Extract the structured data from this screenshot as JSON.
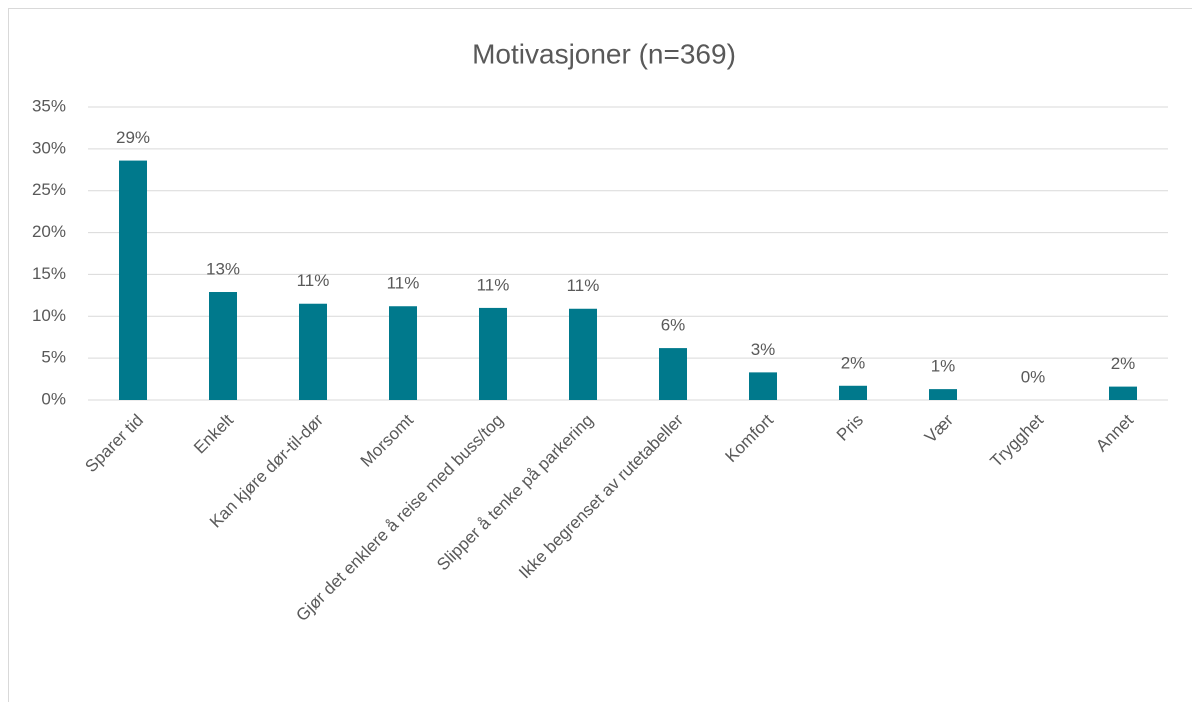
{
  "chart_data": {
    "type": "bar",
    "title": "Motivasjoner (n=369)",
    "categories": [
      "Sparer tid",
      "Enkelt",
      "Kan kjøre dør-til-dør",
      "Morsomt",
      "Gjør det enklere å reise med buss/tog",
      "Slipper å tenke på parkering",
      "Ikke begrenset av rutetabeller",
      "Komfort",
      "Pris",
      "Vær",
      "Trygghet",
      "Annet"
    ],
    "values": [
      28.6,
      12.9,
      11.5,
      11.2,
      11.0,
      10.9,
      6.2,
      3.3,
      1.7,
      1.3,
      0,
      1.6
    ],
    "value_labels": [
      "29%",
      "13%",
      "11%",
      "11%",
      "11%",
      "11%",
      "6%",
      "3%",
      "2%",
      "1%",
      "0%",
      "2%"
    ],
    "color": "#00798c",
    "ylim": [
      0,
      35
    ],
    "yticks": [
      {
        "value": 0,
        "label": "0%"
      },
      {
        "value": 5,
        "label": "5%"
      },
      {
        "value": 10,
        "label": "10%"
      },
      {
        "value": 15,
        "label": "15%"
      },
      {
        "value": 20,
        "label": "20%"
      },
      {
        "value": 25,
        "label": "25%"
      },
      {
        "value": 30,
        "label": "30%"
      },
      {
        "value": 35,
        "label": "35%"
      }
    ],
    "grid": true
  }
}
